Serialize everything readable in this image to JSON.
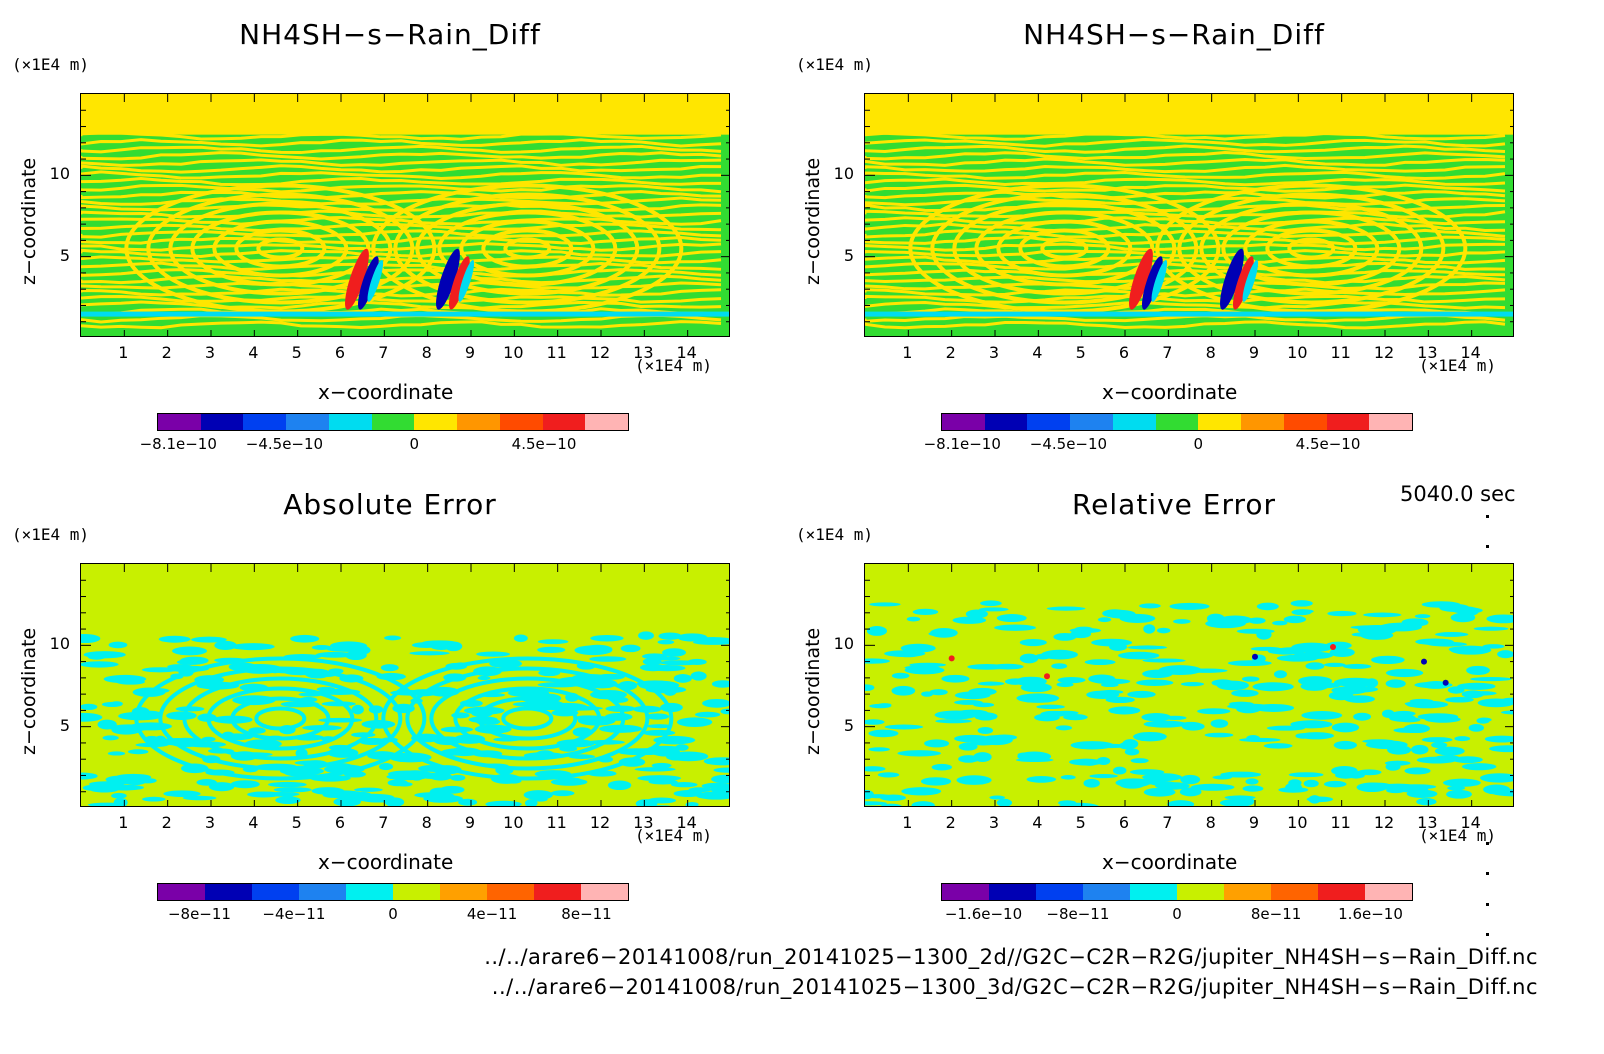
{
  "panels": [
    {
      "title": "NH4SH−s−Rain_Diff",
      "y_unit": "(×1E4 m)",
      "x_unit": "(×1E4 m)",
      "ylabel": "z−coordinate",
      "xlabel": "x−coordinate",
      "x_ticks": [
        "1",
        "2",
        "3",
        "4",
        "5",
        "6",
        "7",
        "8",
        "9",
        "10",
        "11",
        "12",
        "13",
        "14"
      ],
      "y_ticks": [
        "5",
        "10"
      ],
      "colorbar_colors": [
        "#7a00a8",
        "#0000b4",
        "#0040f0",
        "#1e82f0",
        "#00dcf0",
        "#32dc32",
        "#ffe600",
        "#ff9600",
        "#ff4b00",
        "#f01e1e",
        "#ffb4b4"
      ],
      "colorbar_labels": [
        "−8.1e−10",
        "−4.5e−10",
        "0",
        "4.5e−10"
      ]
    },
    {
      "title": "NH4SH−s−Rain_Diff",
      "y_unit": "(×1E4 m)",
      "x_unit": "(×1E4 m)",
      "ylabel": "z−coordinate",
      "xlabel": "x−coordinate",
      "x_ticks": [
        "1",
        "2",
        "3",
        "4",
        "5",
        "6",
        "7",
        "8",
        "9",
        "10",
        "11",
        "12",
        "13",
        "14"
      ],
      "y_ticks": [
        "5",
        "10"
      ],
      "colorbar_colors": [
        "#7a00a8",
        "#0000b4",
        "#0040f0",
        "#1e82f0",
        "#00dcf0",
        "#32dc32",
        "#ffe600",
        "#ff9600",
        "#ff4b00",
        "#f01e1e",
        "#ffb4b4"
      ],
      "colorbar_labels": [
        "−8.1e−10",
        "−4.5e−10",
        "0",
        "4.5e−10"
      ]
    },
    {
      "title": "Absolute Error",
      "y_unit": "(×1E4 m)",
      "x_unit": "(×1E4 m)",
      "ylabel": "z−coordinate",
      "xlabel": "x−coordinate",
      "x_ticks": [
        "1",
        "2",
        "3",
        "4",
        "5",
        "6",
        "7",
        "8",
        "9",
        "10",
        "11",
        "12",
        "13",
        "14"
      ],
      "y_ticks": [
        "5",
        "10"
      ],
      "colorbar_colors": [
        "#7a00a8",
        "#0000b4",
        "#0040f0",
        "#1e82f0",
        "#00f0f0",
        "#c8f000",
        "#ffa000",
        "#ff6400",
        "#f01e1e",
        "#ffb4b4"
      ],
      "colorbar_labels": [
        "−8e−11",
        "−4e−11",
        "0",
        "4e−11",
        "8e−11"
      ]
    },
    {
      "title": "Relative Error",
      "y_unit": "(×1E4 m)",
      "x_unit": "(×1E4 m)",
      "ylabel": "z−coordinate",
      "xlabel": "x−coordinate",
      "x_ticks": [
        "1",
        "2",
        "3",
        "4",
        "5",
        "6",
        "7",
        "8",
        "9",
        "10",
        "11",
        "12",
        "13",
        "14"
      ],
      "y_ticks": [
        "5",
        "10"
      ],
      "colorbar_colors": [
        "#7a00a8",
        "#0000b4",
        "#0040f0",
        "#1e82f0",
        "#00f0f0",
        "#c8f000",
        "#ffa000",
        "#ff6400",
        "#f01e1e",
        "#ffb4b4"
      ],
      "colorbar_labels": [
        "−1.6e−10",
        "−8e−11",
        "0",
        "8e−11",
        "1.6e−10"
      ]
    }
  ],
  "timestamp": "5040.0 sec",
  "files": [
    "../../arare6−20141008/run_20141025−1300_2d//G2C−C2R−R2G/jupiter_NH4SH−s−Rain_Diff.nc",
    "../../arare6−20141008/run_20141025−1300_3d/G2C−C2R−R2G/jupiter_NH4SH−s−Rain_Diff.nc"
  ],
  "chart_data": [
    {
      "type": "heatmap",
      "title": "NH4SH−s−Rain_Diff",
      "xlabel": "x−coordinate",
      "ylabel": "z−coordinate",
      "x_unit": "(×1E4 m)",
      "y_unit": "(×1E4 m)",
      "xlim": [
        0,
        15
      ],
      "ylim": [
        0,
        15
      ],
      "colorbar": [
        "−8.1e−10",
        "−4.5e−10",
        "0",
        "4.5e−10"
      ]
    },
    {
      "type": "heatmap",
      "title": "NH4SH−s−Rain_Diff",
      "xlabel": "x−coordinate",
      "ylabel": "z−coordinate",
      "x_unit": "(×1E4 m)",
      "y_unit": "(×1E4 m)",
      "xlim": [
        0,
        15
      ],
      "ylim": [
        0,
        15
      ],
      "colorbar": [
        "−8.1e−10",
        "−4.5e−10",
        "0",
        "4.5e−10"
      ]
    },
    {
      "type": "heatmap",
      "title": "Absolute Error",
      "xlabel": "x−coordinate",
      "ylabel": "z−coordinate",
      "x_unit": "(×1E4 m)",
      "y_unit": "(×1E4 m)",
      "xlim": [
        0,
        15
      ],
      "ylim": [
        0,
        15
      ],
      "colorbar": [
        "−8e−11",
        "−4e−11",
        "0",
        "4e−11",
        "8e−11"
      ]
    },
    {
      "type": "heatmap",
      "title": "Relative Error",
      "xlabel": "x−coordinate",
      "ylabel": "z−coordinate",
      "x_unit": "(×1E4 m)",
      "y_unit": "(×1E4 m)",
      "xlim": [
        0,
        15
      ],
      "ylim": [
        0,
        15
      ],
      "colorbar": [
        "−1.6e−10",
        "−8e−11",
        "0",
        "8e−11",
        "1.6e−10"
      ]
    }
  ]
}
